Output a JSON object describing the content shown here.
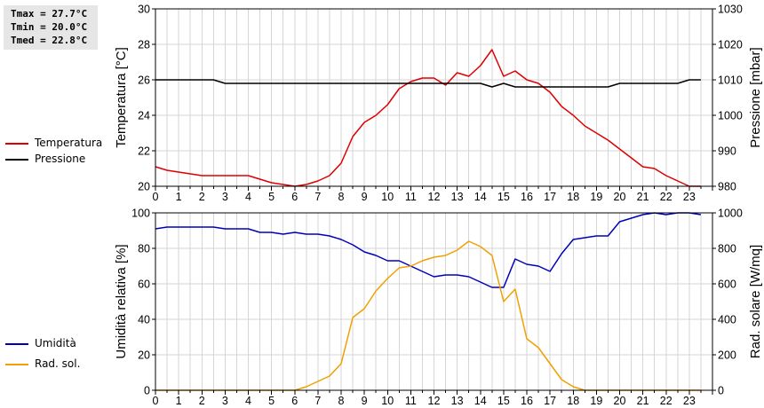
{
  "stats": {
    "tmax": "Tmax = 27.7°C",
    "tmin": "Tmin = 20.0°C",
    "tmed": "Tmed = 22.8°C"
  },
  "legend_top": [
    {
      "label": "Temperatura",
      "color": "#dd0000"
    },
    {
      "label": "Pressione",
      "color": "#000000"
    }
  ],
  "legend_bottom": [
    {
      "label": "Umidità",
      "color": "#0000bb"
    },
    {
      "label": "Rad. sol.",
      "color": "#f0a000"
    }
  ],
  "chart_data": [
    {
      "type": "line",
      "ylabel": "Temperatura [°C]",
      "y2label": "Pressione [mbar]",
      "xlim": [
        0,
        24
      ],
      "ylim": [
        20,
        30
      ],
      "y2lim": [
        980,
        1030
      ],
      "xticks": [
        "0",
        "1",
        "2",
        "3",
        "4",
        "5",
        "6",
        "7",
        "8",
        "9",
        "10",
        "11",
        "12",
        "13",
        "14",
        "15",
        "16",
        "17",
        "18",
        "19",
        "20",
        "21",
        "22",
        "23"
      ],
      "yticks": [
        "20",
        "22",
        "24",
        "26",
        "28",
        "30"
      ],
      "y2ticks": [
        "980",
        "990",
        "1000",
        "1010",
        "1020",
        "1030"
      ],
      "grid": true,
      "legend": "left",
      "series": [
        {
          "name": "Temperatura",
          "axis": "left",
          "color": "#dd0000",
          "x": [
            0,
            0.5,
            1,
            1.5,
            2,
            2.5,
            3,
            3.5,
            4,
            4.5,
            5,
            5.5,
            6,
            6.5,
            7,
            7.5,
            8,
            8.5,
            9,
            9.5,
            10,
            10.5,
            11,
            11.5,
            12,
            12.5,
            13,
            13.5,
            14,
            14.5,
            15,
            15.5,
            16,
            16.5,
            17,
            17.5,
            18,
            18.5,
            19,
            19.5,
            20,
            20.5,
            21,
            21.5,
            22,
            22.5,
            23,
            23.5
          ],
          "y": [
            21.1,
            20.9,
            20.8,
            20.7,
            20.6,
            20.6,
            20.6,
            20.6,
            20.6,
            20.4,
            20.2,
            20.1,
            20.0,
            20.1,
            20.3,
            20.6,
            21.3,
            22.8,
            23.6,
            24.0,
            24.6,
            25.5,
            25.9,
            26.1,
            26.1,
            25.7,
            26.4,
            26.2,
            26.8,
            27.7,
            26.2,
            26.5,
            26.0,
            25.8,
            25.3,
            24.5,
            24.0,
            23.4,
            23.0,
            22.6,
            22.1,
            21.6,
            21.1,
            21.0,
            20.6,
            20.3,
            20.0,
            20.0
          ]
        },
        {
          "name": "Pressione",
          "axis": "right",
          "color": "#000000",
          "x": [
            0,
            2.5,
            3,
            11,
            12,
            14,
            14.5,
            15,
            15.5,
            16,
            17,
            18,
            19.5,
            20,
            22.5,
            23,
            23.5
          ],
          "y": [
            1010,
            1010,
            1009,
            1009,
            1009,
            1009,
            1008,
            1009,
            1008,
            1008,
            1008,
            1008,
            1008,
            1009,
            1009,
            1010,
            1010
          ]
        }
      ]
    },
    {
      "type": "line",
      "ylabel": "Umidità relativa [%]",
      "y2label": "Rad. solare [W/mq]",
      "xlim": [
        0,
        24
      ],
      "ylim": [
        0,
        100
      ],
      "y2lim": [
        0,
        1000
      ],
      "xticks": [
        "0",
        "1",
        "2",
        "3",
        "4",
        "5",
        "6",
        "7",
        "8",
        "9",
        "10",
        "11",
        "12",
        "13",
        "14",
        "15",
        "16",
        "17",
        "18",
        "19",
        "20",
        "21",
        "22",
        "23"
      ],
      "yticks": [
        "0",
        "20",
        "40",
        "60",
        "80",
        "100"
      ],
      "y2ticks": [
        "0",
        "200",
        "400",
        "600",
        "800",
        "1000"
      ],
      "grid": true,
      "legend": "left",
      "series": [
        {
          "name": "Umidità",
          "axis": "left",
          "color": "#0000bb",
          "x": [
            0,
            0.5,
            1,
            1.5,
            2,
            2.5,
            3,
            3.5,
            4,
            4.5,
            5,
            5.5,
            6,
            6.5,
            7,
            7.5,
            8,
            8.5,
            9,
            9.5,
            10,
            10.5,
            11,
            11.5,
            12,
            12.5,
            13,
            13.5,
            14,
            14.5,
            15,
            15.5,
            16,
            16.5,
            17,
            17.5,
            18,
            18.5,
            19,
            19.5,
            20,
            20.5,
            21,
            21.5,
            22,
            22.5,
            23,
            23.5
          ],
          "y": [
            91,
            92,
            92,
            92,
            92,
            92,
            91,
            91,
            91,
            89,
            89,
            88,
            89,
            88,
            88,
            87,
            85,
            82,
            78,
            76,
            73,
            73,
            70,
            67,
            64,
            65,
            65,
            64,
            61,
            58,
            58,
            74,
            71,
            70,
            67,
            77,
            85,
            86,
            87,
            87,
            95,
            97,
            99,
            100,
            99,
            100,
            100,
            99
          ]
        },
        {
          "name": "Rad. sol.",
          "axis": "right",
          "color": "#f0a000",
          "x": [
            0,
            6,
            6.5,
            7,
            7.5,
            8,
            8.5,
            9,
            9.5,
            10,
            10.5,
            11,
            11.5,
            12,
            12.5,
            13,
            13.5,
            14,
            14.5,
            15,
            15.5,
            16,
            16.5,
            17,
            17.5,
            18,
            18.5,
            19,
            23.5
          ],
          "y": [
            0,
            0,
            20,
            50,
            80,
            150,
            410,
            460,
            560,
            630,
            690,
            700,
            730,
            750,
            760,
            790,
            840,
            810,
            760,
            500,
            570,
            290,
            240,
            150,
            60,
            20,
            0,
            0,
            0
          ]
        }
      ]
    }
  ]
}
